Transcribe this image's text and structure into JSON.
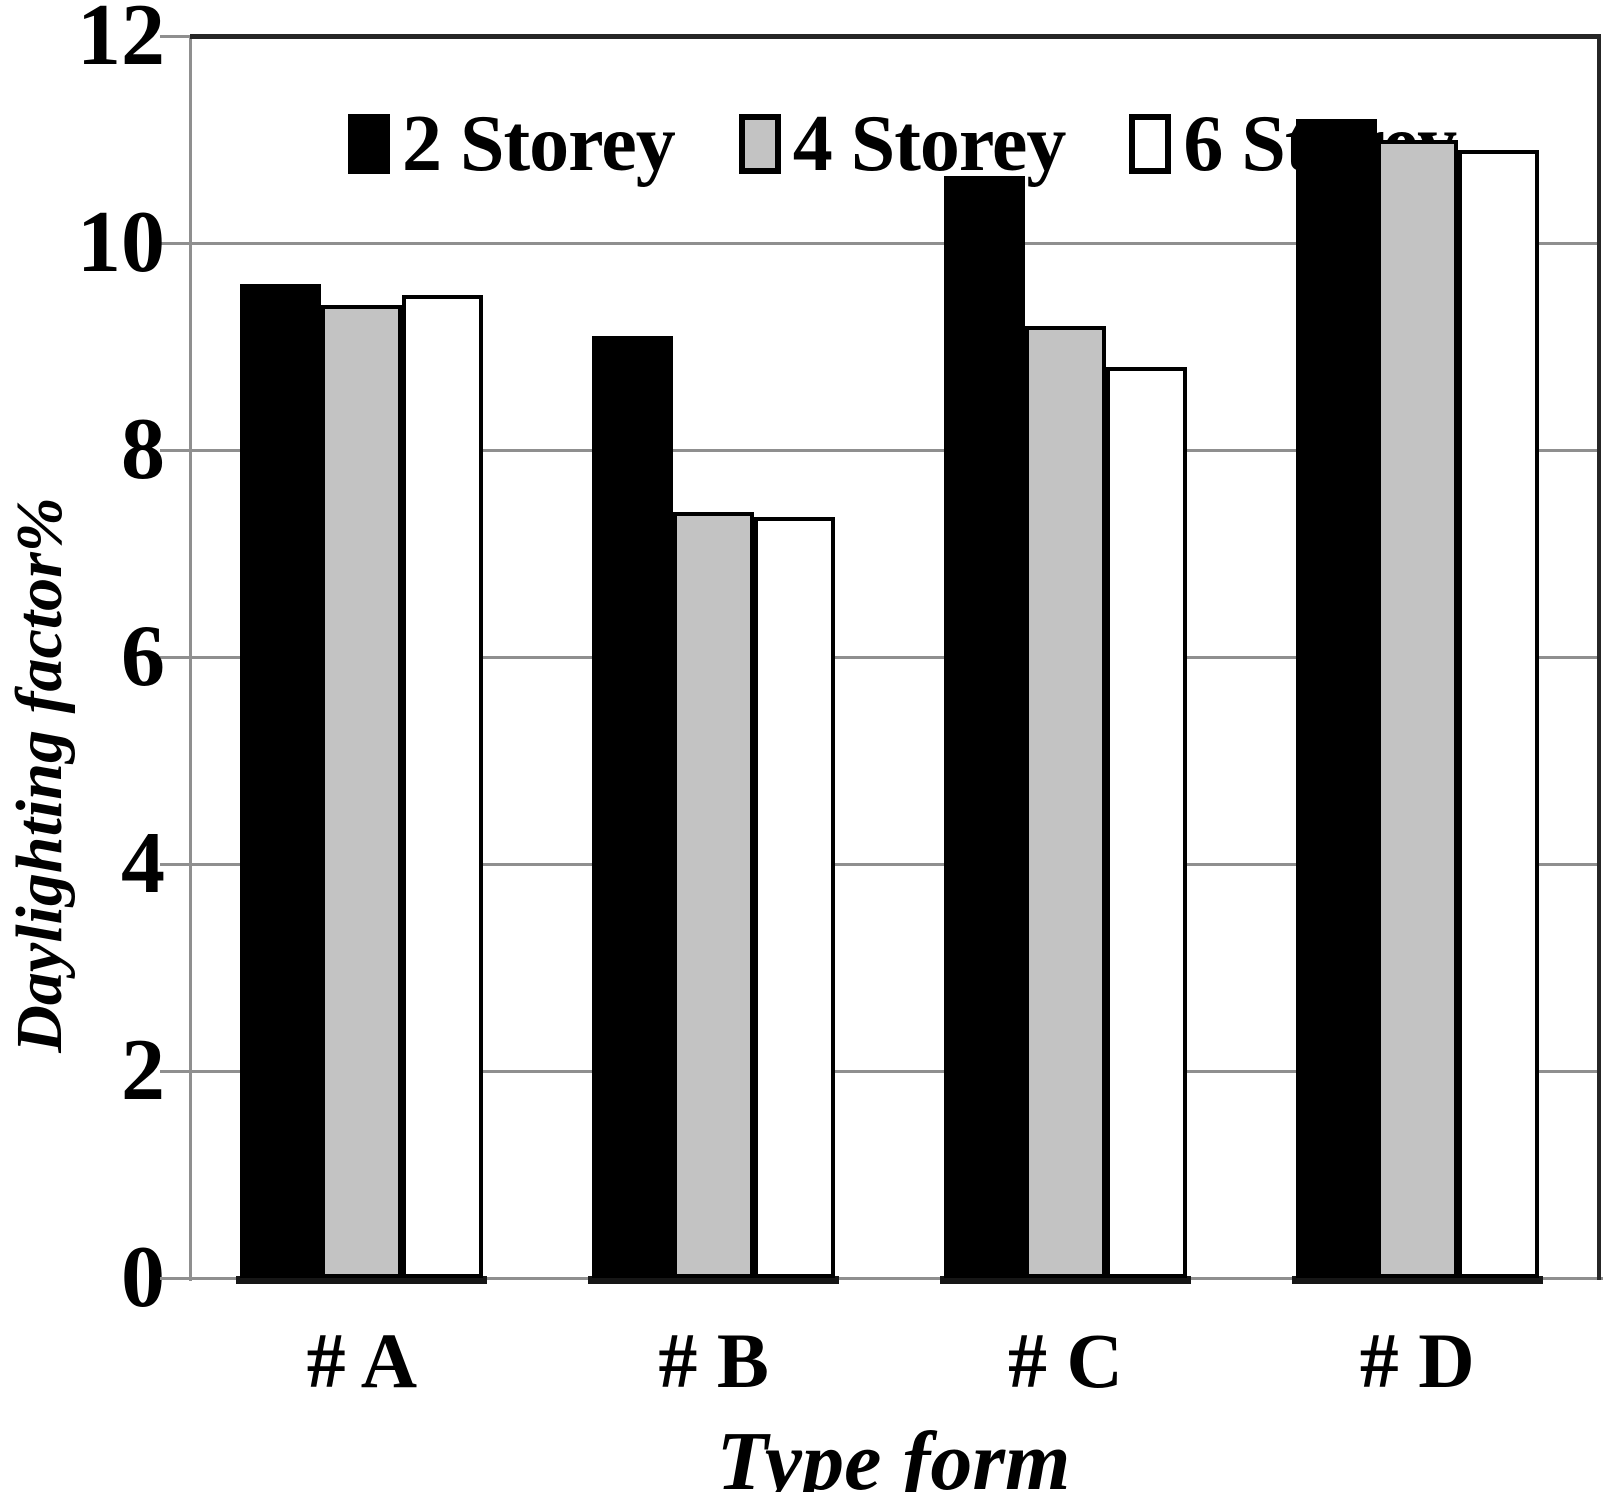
{
  "chart_data": {
    "type": "bar",
    "title": "",
    "categories": [
      "# A",
      "# B",
      "# C",
      "# D"
    ],
    "series": [
      {
        "name": "2 Storey",
        "color": "#000000",
        "values": [
          9.6,
          9.1,
          10.65,
          11.2
        ]
      },
      {
        "name": "4 Storey",
        "color": "#c3c3c3",
        "values": [
          9.4,
          7.4,
          9.2,
          11.0
        ]
      },
      {
        "name": "6 Storey",
        "color": "#ffffff",
        "values": [
          9.5,
          7.35,
          8.8,
          10.9
        ]
      }
    ],
    "xlabel": "Type form",
    "ylabel": "Daylighting factor%",
    "ylim": [
      0,
      12
    ],
    "ytick_step": 2,
    "ytick_labels": [
      "0",
      "2",
      "4",
      "6",
      "8",
      "10",
      "12"
    ],
    "grid": true,
    "legend_position": "top-inside",
    "colors": {
      "grid": "#8f8f8f",
      "axis": "#8f8f8f",
      "border": "#262626",
      "bar_outline": "#000000",
      "text": "#000000",
      "background": "#ffffff"
    }
  }
}
